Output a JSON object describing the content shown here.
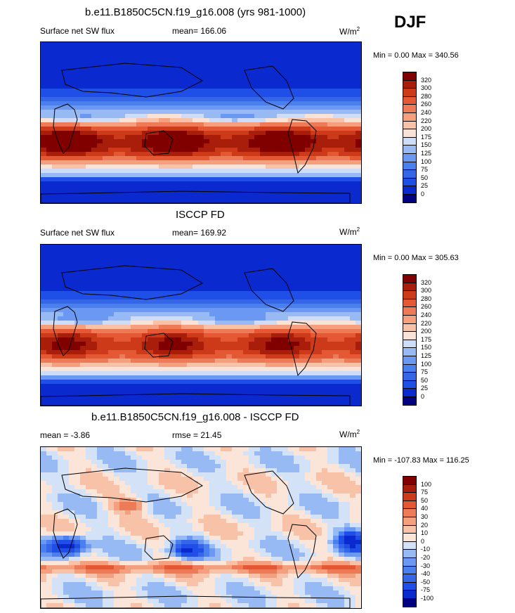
{
  "header": {
    "season": "DJF"
  },
  "panels": [
    {
      "title": "b.e11.B1850C5CN.f19_g16.008 (yrs 981-1000)",
      "left_label": "Surface net SW flux",
      "mean_label": "mean= 166.06",
      "units": "W/m",
      "units_sup": "2",
      "minmax": "Min =   0.00 Max = 340.56",
      "colorbar_labels": [
        "320",
        "300",
        "280",
        "260",
        "240",
        "220",
        "200",
        "175",
        "150",
        "125",
        "100",
        "75",
        "50",
        "25",
        "0"
      ]
    },
    {
      "title": "ISCCP FD",
      "left_label": "Surface net SW flux",
      "mean_label": "mean= 169.92",
      "units": "W/m",
      "units_sup": "2",
      "minmax": "Min =   0.00 Max = 305.63",
      "colorbar_labels": [
        "320",
        "300",
        "280",
        "260",
        "240",
        "220",
        "200",
        "175",
        "150",
        "125",
        "100",
        "75",
        "50",
        "25",
        "0"
      ]
    },
    {
      "title": "b.e11.B1850C5CN.f19_g16.008 - ISCCP FD",
      "left_label": "mean =  -3.86",
      "mean_label": "rmse =  21.45",
      "units": "W/m",
      "units_sup": "2",
      "minmax": "Min = -107.83 Max = 116.25",
      "colorbar_labels": [
        "100",
        "75",
        "50",
        "40",
        "30",
        "20",
        "10",
        "0",
        "-10",
        "-20",
        "-30",
        "-40",
        "-50",
        "-75",
        "-100"
      ]
    }
  ],
  "chart_data": [
    {
      "type": "heatmap",
      "title": "b.e11.B1850C5CN.f19_g16.008 (yrs 981-1000)",
      "variable": "Surface net SW flux",
      "units": "W/m2",
      "mean": 166.06,
      "min": 0.0,
      "max": 340.56,
      "levels": [
        0,
        25,
        50,
        75,
        100,
        125,
        150,
        175,
        200,
        220,
        240,
        260,
        280,
        300,
        320
      ],
      "colors": [
        "#000080",
        "#0a2ad0",
        "#1f4fe6",
        "#3566e8",
        "#4a7ff0",
        "#6a98f2",
        "#97b9f4",
        "#cfdcf7",
        "#f9e3d6",
        "#f8c2a8",
        "#f4a07f",
        "#ee7b57",
        "#e45833",
        "#cc3a1a",
        "#a81e0a",
        "#800000"
      ]
    },
    {
      "type": "heatmap",
      "title": "ISCCP FD",
      "variable": "Surface net SW flux",
      "units": "W/m2",
      "mean": 169.92,
      "min": 0.0,
      "max": 305.63,
      "levels": [
        0,
        25,
        50,
        75,
        100,
        125,
        150,
        175,
        200,
        220,
        240,
        260,
        280,
        300,
        320
      ],
      "colors": [
        "#000080",
        "#0a2ad0",
        "#1f4fe6",
        "#3566e8",
        "#4a7ff0",
        "#6a98f2",
        "#97b9f4",
        "#cfdcf7",
        "#f9e3d6",
        "#f8c2a8",
        "#f4a07f",
        "#ee7b57",
        "#e45833",
        "#cc3a1a",
        "#a81e0a",
        "#800000"
      ]
    },
    {
      "type": "heatmap",
      "title": "b.e11.B1850C5CN.f19_g16.008 - ISCCP FD",
      "units": "W/m2",
      "mean": -3.86,
      "rmse": 21.45,
      "min": -107.83,
      "max": 116.25,
      "levels": [
        -100,
        -75,
        -50,
        -40,
        -30,
        -20,
        -10,
        0,
        10,
        20,
        30,
        40,
        50,
        75,
        100
      ],
      "colors": [
        "#000080",
        "#0a2ad0",
        "#1f4fe6",
        "#3566e8",
        "#4a7ff0",
        "#6a98f2",
        "#97b9f4",
        "#d4e2f7",
        "#fbe4d8",
        "#f8c2a8",
        "#f4a07f",
        "#ee7b57",
        "#e45833",
        "#cc3a1a",
        "#a81e0a",
        "#800000"
      ]
    }
  ]
}
